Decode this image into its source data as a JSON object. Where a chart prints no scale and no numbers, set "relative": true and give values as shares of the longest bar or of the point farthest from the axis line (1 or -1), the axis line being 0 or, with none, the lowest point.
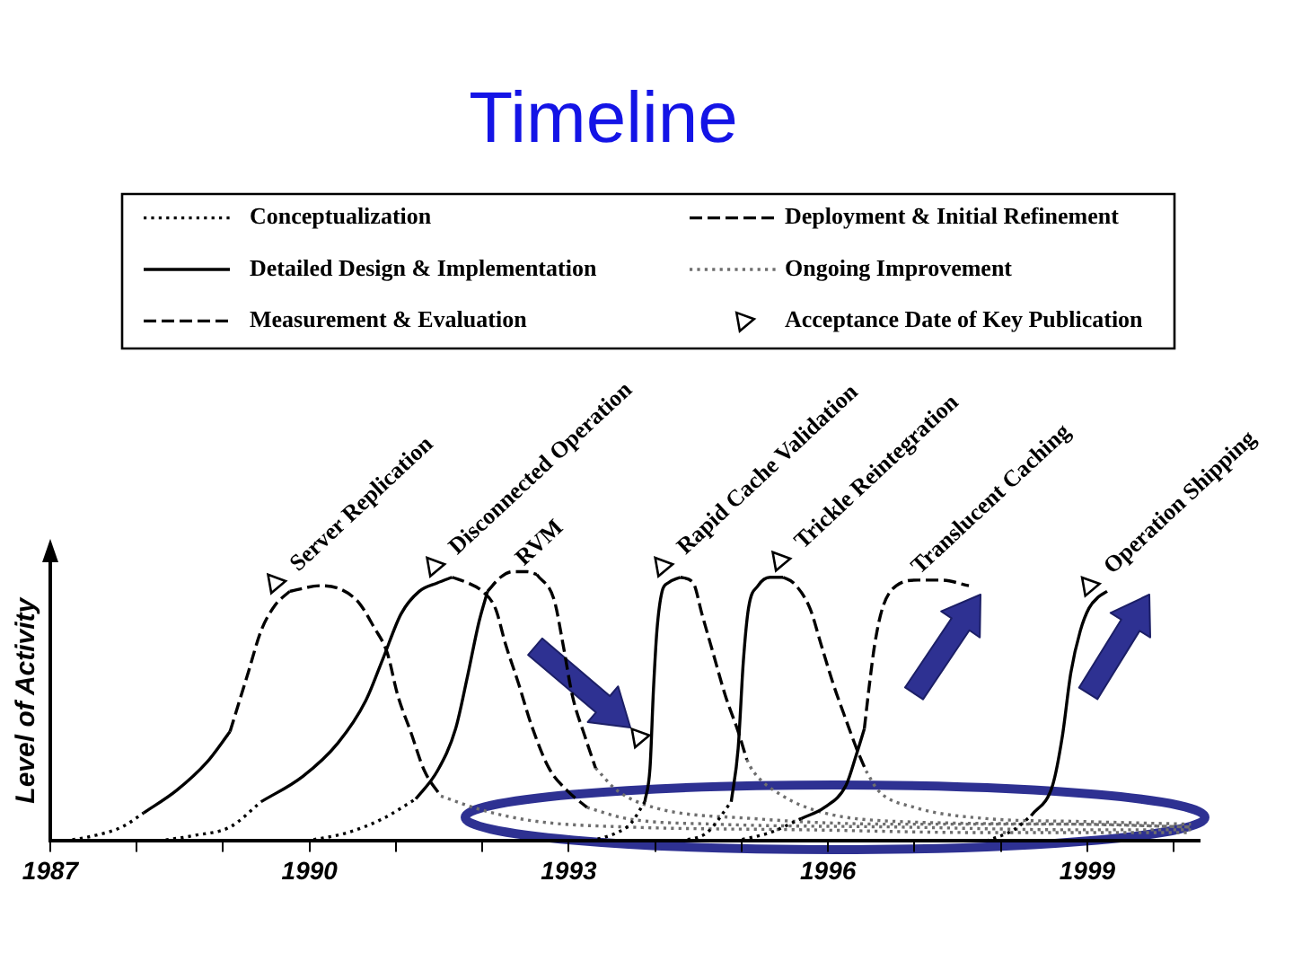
{
  "chart_data": {
    "type": "line",
    "title": "Timeline",
    "ylabel": "Level of Activity",
    "relative": true,
    "legend": "top",
    "grid": false,
    "marker": "none",
    "xlim": [
      1987,
      2000.3
    ],
    "xticks": [
      1987,
      {
        "value": 1988,
        "label": null
      },
      {
        "value": 1989,
        "label": null
      },
      1990,
      {
        "value": 1991,
        "label": null
      },
      {
        "value": 1992,
        "label": null
      },
      1993,
      {
        "value": 1994,
        "label": null
      },
      {
        "value": 1995,
        "label": null
      },
      1996,
      {
        "value": 1997,
        "label": null
      },
      {
        "value": 1998,
        "label": null
      },
      1999,
      {
        "value": 2000,
        "label": null
      }
    ],
    "series": [
      {
        "name": "Conceptualization",
        "line_style": "dotted",
        "color": "#000000",
        "x": [
          1987.17,
          1987.52,
          1987.83,
          1988.08,
          null,
          1988.25,
          1988.67,
          1989.08,
          1989.44,
          null,
          1989.96,
          1990.44,
          1990.85,
          1991.23,
          null,
          1993.25,
          1993.56,
          1993.71,
          1993.88,
          null,
          1994.29,
          1994.6,
          1994.88,
          null,
          1994.92,
          1995.33,
          1995.69,
          null,
          1997.83,
          1998.15,
          1998.35
        ],
        "values": [
          0,
          0.02,
          0.05,
          0.1,
          null,
          0,
          0.02,
          0.05,
          0.14,
          null,
          0,
          0.03,
          0.08,
          0.15,
          null,
          0,
          0.03,
          0.06,
          0.14,
          null,
          0,
          0.03,
          0.14,
          null,
          0,
          0.03,
          0.08,
          null,
          0,
          0.04,
          0.09
        ]
      },
      {
        "name": "Detailed Design & Implementation",
        "line_style": "solid",
        "color": "#000000",
        "x": [
          1988.08,
          1988.46,
          1988.81,
          1989.08,
          null,
          1989.44,
          1989.92,
          1990.33,
          1990.65,
          1990.85,
          1991.06,
          1991.27,
          1991.48,
          1991.65,
          null,
          1991.23,
          1991.48,
          1991.69,
          1991.83,
          1991.96,
          1992.06,
          null,
          1993.88,
          1993.94,
          1993.98,
          1994.02,
          1994.08,
          1994.15,
          1994.29,
          null,
          1994.88,
          1994.96,
          1995.02,
          1995.08,
          1995.19,
          1995.33,
          1995.48,
          null,
          1995.69,
          1995.96,
          1996.21,
          1996.33,
          1996.42,
          null,
          1998.35,
          1998.6,
          1998.71,
          1998.81,
          1998.92,
          1999.02,
          1999.13,
          1999.23
        ],
        "values": [
          0.1,
          0.18,
          0.28,
          0.39,
          null,
          0.14,
          0.23,
          0.35,
          0.5,
          0.65,
          0.81,
          0.89,
          0.92,
          0.94,
          null,
          0.15,
          0.25,
          0.4,
          0.59,
          0.78,
          0.89,
          null,
          0.14,
          0.26,
          0.54,
          0.75,
          0.89,
          0.92,
          0.94,
          null,
          0.14,
          0.33,
          0.64,
          0.83,
          0.91,
          0.94,
          0.94,
          null,
          0.08,
          0.12,
          0.2,
          0.31,
          0.4,
          null,
          0.09,
          0.2,
          0.37,
          0.6,
          0.75,
          0.83,
          0.87,
          0.89
        ]
      },
      {
        "name": "Measurement & Evaluation",
        "line_style": "dashed",
        "color": "#000000",
        "x": [
          1989.08,
          1989.29,
          1989.44,
          1989.6,
          1989.77,
          null,
          1992.06,
          1992.21,
          1992.35,
          1992.52,
          1992.63,
          null,
          1996.42,
          1996.48,
          1996.54,
          1996.63,
          1996.79,
          1997.04,
          1997.31,
          1997.63
        ],
        "values": [
          0.39,
          0.6,
          0.75,
          0.84,
          0.89,
          null,
          0.89,
          0.94,
          0.96,
          0.96,
          0.95,
          null,
          0.4,
          0.56,
          0.7,
          0.83,
          0.91,
          0.93,
          0.93,
          0.91
        ]
      },
      {
        "name": "Deployment & Initial Refinement",
        "line_style": "dashed",
        "color": "#000000",
        "x": [
          1989.77,
          1990.13,
          1990.54,
          1990.75,
          1990.9,
          1991.02,
          1991.17,
          1991.33,
          1991.52,
          null,
          1991.65,
          1991.83,
          1992,
          1992.15,
          1992.27,
          1992.42,
          1992.56,
          1992.77,
          1992.98,
          1993.21,
          null,
          1992.63,
          1992.83,
          1992.94,
          1993.04,
          1993.19,
          1993.31,
          null,
          1994.29,
          1994.44,
          1994.54,
          1994.67,
          1994.81,
          1994.96,
          1995.06,
          null,
          1995.48,
          1995.6,
          1995.79,
          1995.92,
          1996.06,
          1996.21,
          1996.33,
          1996.44
        ],
        "values": [
          0.89,
          0.91,
          0.86,
          0.76,
          0.67,
          0.52,
          0.39,
          0.25,
          0.16,
          null,
          0.94,
          0.92,
          0.89,
          0.83,
          0.7,
          0.56,
          0.42,
          0.26,
          0.18,
          0.12,
          null,
          0.95,
          0.86,
          0.69,
          0.52,
          0.37,
          0.26,
          null,
          0.94,
          0.92,
          0.81,
          0.67,
          0.52,
          0.39,
          0.29,
          null,
          0.94,
          0.92,
          0.83,
          0.7,
          0.56,
          0.43,
          0.33,
          0.25
        ]
      },
      {
        "name": "Ongoing Improvement",
        "line_style": "dotted",
        "color": "#6e6e6e",
        "x": [
          1991.52,
          1992,
          1992.63,
          1993.67,
          1995.75,
          1997.83,
          2000.2,
          null,
          1993.21,
          1993.67,
          1994.71,
          1996.79,
          1998.88,
          2000.2,
          null,
          1993.31,
          1993.56,
          1993.98,
          1995.13,
          1996.79,
          1998.88,
          2000.2,
          null,
          1995.06,
          1995.13,
          1995.48,
          1995.96,
          1996.79,
          1998.88,
          2000.2,
          null,
          1996.44,
          1996.58,
          1997,
          1997.83,
          1998.88,
          2000.2
        ],
        "values": [
          0.16,
          0.11,
          0.07,
          0.05,
          0.04,
          0.03,
          0.03,
          null,
          0.12,
          0.08,
          0.06,
          0.05,
          0.04,
          0.04,
          null,
          0.26,
          0.18,
          0.12,
          0.08,
          0.06,
          0.06,
          0.05,
          null,
          0.29,
          0.25,
          0.16,
          0.1,
          0.07,
          0.06,
          0.05,
          null,
          0.25,
          0.18,
          0.12,
          0.08,
          0.07,
          0.06
        ]
      },
      {
        "name": "Acceptance Date of Key Publication",
        "type": "scatter",
        "marker": "triangle",
        "color": "#000000",
        "x": [
          1989.6,
          1991.44,
          1993.81,
          1994.08,
          1995.44,
          1999.02
        ],
        "values": [
          0.92,
          0.98,
          0.37,
          0.98,
          1,
          0.91
        ]
      }
    ],
    "annotations": [
      {
        "text": "Server Replication",
        "x": 1989.6,
        "y": 0.92
      },
      {
        "text": "Disconnected Operation",
        "x": 1991.44,
        "y": 0.98
      },
      {
        "text": "RVM",
        "x": 1992.21,
        "y": 0.94
      },
      {
        "text": "Rapid Cache Validation",
        "x": 1994.08,
        "y": 0.98
      },
      {
        "text": "Trickle Reintegration",
        "x": 1995.44,
        "y": 1
      },
      {
        "text": "Translucent Caching",
        "x": 1996.79,
        "y": 0.91
      },
      {
        "text": "Operation Shipping",
        "x": 1999.02,
        "y": 0.91
      }
    ]
  }
}
